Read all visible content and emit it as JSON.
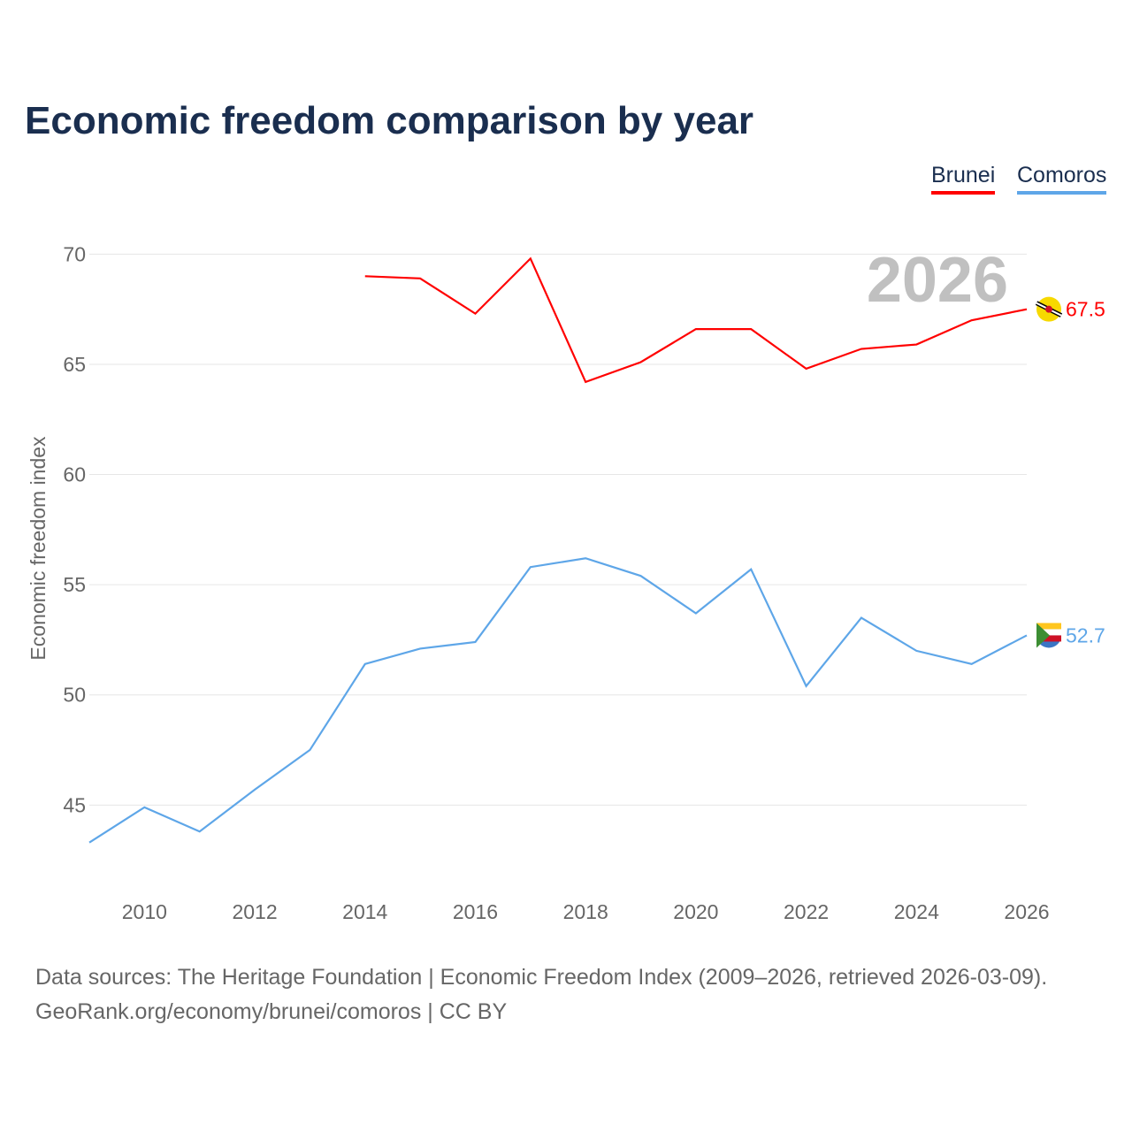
{
  "chart_data": {
    "type": "line",
    "title": "Economic freedom comparison by year",
    "xlabel": "",
    "ylabel": "Economic freedom index",
    "x": [
      2009,
      2010,
      2011,
      2012,
      2013,
      2014,
      2015,
      2016,
      2017,
      2018,
      2019,
      2020,
      2021,
      2022,
      2023,
      2024,
      2025,
      2026
    ],
    "xticks": [
      "2010",
      "2012",
      "2014",
      "2016",
      "2018",
      "2020",
      "2022",
      "2024",
      "2026"
    ],
    "yticks": [
      "45",
      "50",
      "55",
      "60",
      "65",
      "70"
    ],
    "ylim": [
      41,
      71.5
    ],
    "xlim": [
      2009,
      2026
    ],
    "grid": true,
    "legend_position": "top-right",
    "year_watermark": "2026",
    "series": [
      {
        "name": "Brunei",
        "color": "#ff0000",
        "end_label": "67.5",
        "values": [
          null,
          null,
          null,
          null,
          null,
          69.0,
          68.9,
          67.3,
          69.8,
          64.2,
          65.1,
          66.6,
          66.6,
          64.8,
          65.7,
          65.9,
          67.0,
          67.5
        ]
      },
      {
        "name": "Comoros",
        "color": "#5ea6e8",
        "end_label": "52.7",
        "values": [
          43.3,
          44.9,
          43.8,
          45.7,
          47.5,
          51.4,
          52.1,
          52.4,
          55.8,
          56.2,
          55.4,
          53.7,
          55.7,
          50.4,
          53.5,
          52.0,
          51.4,
          52.7
        ]
      }
    ]
  },
  "footer": {
    "line1": "Data sources: The Heritage Foundation | Economic Freedom Index (2009–2026, retrieved 2026-03-09).",
    "line2": "GeoRank.org/economy/brunei/comoros | CC BY"
  }
}
